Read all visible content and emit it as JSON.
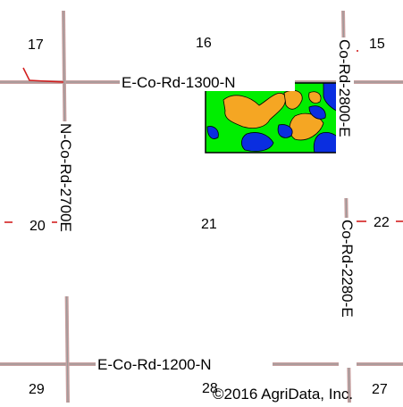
{
  "map": {
    "sections": {
      "s15": "15",
      "s16": "16",
      "s17": "17",
      "s20": "20",
      "s21": "21",
      "s22": "22",
      "s27": "27",
      "s28": "28",
      "s29": "29"
    },
    "roads": {
      "north": "E-Co-Rd-1300-N",
      "south": "E-Co-Rd-1200-N",
      "west": "N-Co-Rd-2700E",
      "east_upper": "Co-Rd-2800-E",
      "east_lower": "Co-Rd-2280-E"
    },
    "copyright": "©2016 AgriData, Inc."
  },
  "colors": {
    "field_green": "#00ee00",
    "field_orange": "#f5a623",
    "field_blue": "#0a2ee0",
    "road_line": "#b88a8a",
    "road_center": "#8e8e8e",
    "section_tick": "#d31f1f",
    "background": "#ffffff"
  }
}
